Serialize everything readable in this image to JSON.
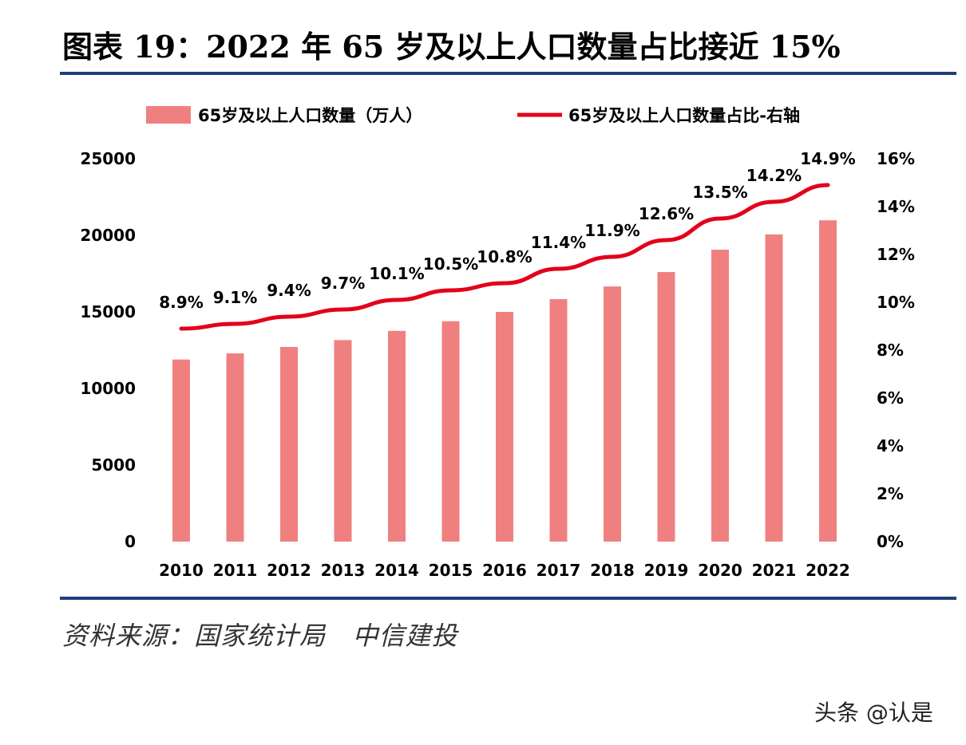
{
  "title": "图表 19：2022 年 65 岁及以上人口数量占比接近 15%",
  "source": "资料来源：国家统计局   中信建投",
  "watermark": "头条 @认是",
  "colors": {
    "bar": "#f08080",
    "line": "#e3001b",
    "rule": "#1f3f7a"
  },
  "chart_data": {
    "type": "bar+line",
    "categories": [
      "2010",
      "2011",
      "2012",
      "2013",
      "2014",
      "2015",
      "2016",
      "2017",
      "2018",
      "2019",
      "2020",
      "2021",
      "2022"
    ],
    "series": [
      {
        "name": "65岁及以上人口数量（万人）",
        "type": "bar",
        "axis": "left",
        "values": [
          11890,
          12290,
          12710,
          13160,
          13760,
          14390,
          15000,
          15830,
          16660,
          17600,
          19060,
          20060,
          20980
        ]
      },
      {
        "name": "65岁及以上人口数量占比-右轴",
        "type": "line",
        "axis": "right",
        "values": [
          8.9,
          9.1,
          9.4,
          9.7,
          10.1,
          10.5,
          10.8,
          11.4,
          11.9,
          12.6,
          13.5,
          14.2,
          14.9
        ],
        "labels": [
          "8.9%",
          "9.1%",
          "9.4%",
          "9.7%",
          "10.1%",
          "10.5%",
          "10.8%",
          "11.4%",
          "11.9%",
          "12.6%",
          "13.5%",
          "14.2%",
          "14.9%"
        ]
      }
    ],
    "left_axis": {
      "ylim": [
        0,
        25000
      ],
      "ticks": [
        "0",
        "5000",
        "10000",
        "15000",
        "20000",
        "25000"
      ]
    },
    "right_axis": {
      "ylim": [
        0,
        16
      ],
      "ticks": [
        "0%",
        "2%",
        "4%",
        "6%",
        "8%",
        "10%",
        "12%",
        "14%",
        "16%"
      ]
    },
    "legend": "top",
    "grid": false
  }
}
